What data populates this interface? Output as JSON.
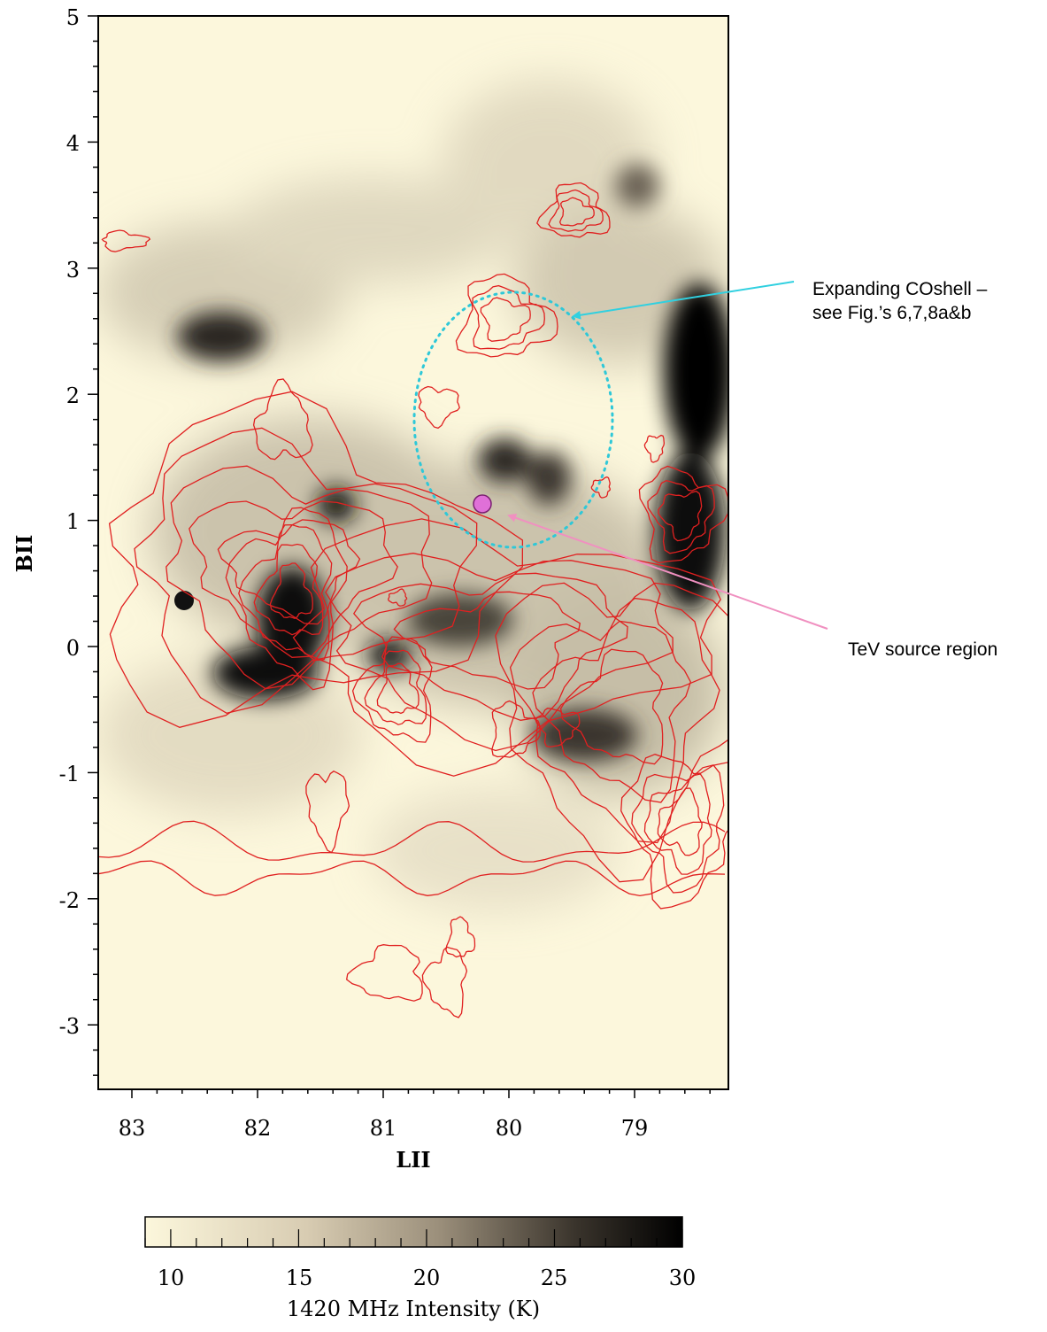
{
  "figure": {
    "x_axis": {
      "label": "LII",
      "tick_labels": [
        "83",
        "82",
        "81",
        "80",
        "79"
      ],
      "range": [
        83.3,
        78.3
      ]
    },
    "y_axis": {
      "label": "BII",
      "tick_labels": [
        "5",
        "4",
        "3",
        "2",
        "1",
        "0",
        "-1",
        "-2",
        "-3"
      ],
      "range": [
        -3.5,
        5
      ]
    },
    "colorbar": {
      "label": "1420 MHz Intensity (K)",
      "tick_labels": [
        "10",
        "15",
        "20",
        "25",
        "30"
      ],
      "range": [
        9,
        30
      ],
      "color_low": "#fcf7dc",
      "color_high": "#000000"
    },
    "annotations": {
      "co_shell_line1": "Expanding COshell –",
      "co_shell_line2": "see Fig.’s 6,7,8a&b",
      "tev_source": "TeV source region"
    },
    "colors": {
      "contour": "#e02020",
      "shell_circle": "#2ec8d8",
      "tev_marker": "#e070d8",
      "tev_arrow": "#f090c0",
      "shell_arrow": "#30d0e0",
      "background": "#fcf7dc"
    }
  }
}
